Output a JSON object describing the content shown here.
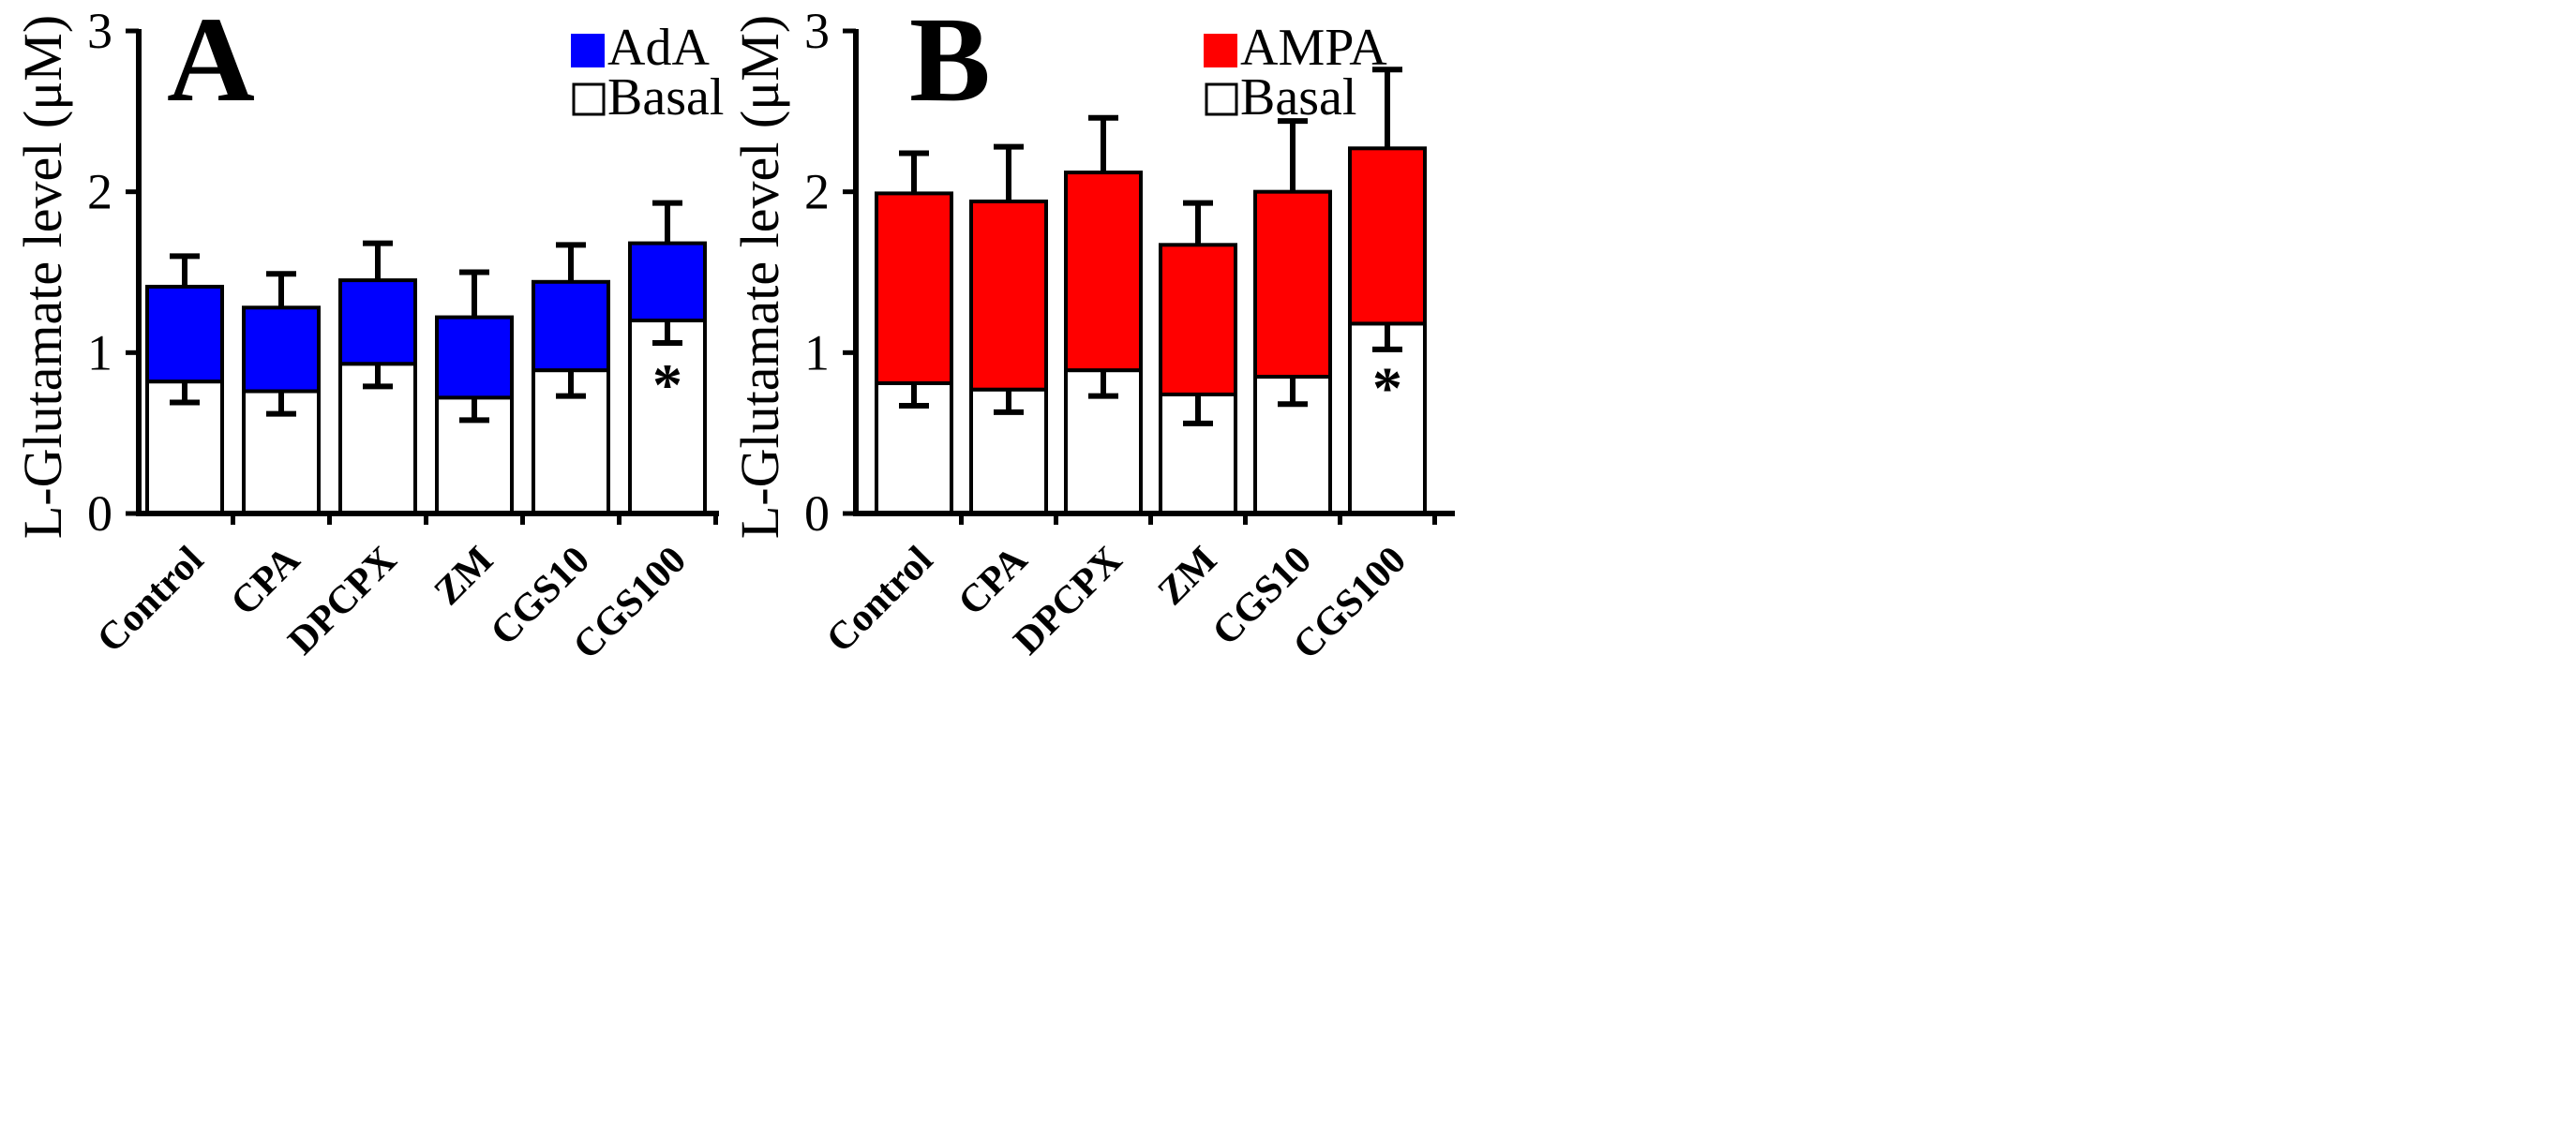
{
  "chart_data": [
    {
      "type": "bar",
      "panel": "A",
      "stacked": true,
      "categories": [
        "Control",
        "CPA",
        "DPCPX",
        "ZM",
        "CGS10",
        "CGS100"
      ],
      "ylabel": "L-Glutamate level (μM)",
      "ylim": [
        0,
        3
      ],
      "yticks": [
        0,
        1,
        2,
        3
      ],
      "legend_position": "top-right",
      "series": [
        {
          "name": "Basal",
          "color": "#ffffff",
          "values": [
            0.82,
            0.76,
            0.93,
            0.72,
            0.89,
            1.2
          ],
          "errors": [
            0.13,
            0.14,
            0.14,
            0.14,
            0.16,
            0.14
          ]
        },
        {
          "name": "AdA",
          "color": "#0000ff",
          "values": [
            1.41,
            1.28,
            1.45,
            1.22,
            1.44,
            1.68
          ],
          "errors": [
            0.19,
            0.21,
            0.23,
            0.28,
            0.23,
            0.25
          ]
        }
      ],
      "annotations": [
        {
          "category": "CGS100",
          "text": "*"
        }
      ]
    },
    {
      "type": "bar",
      "panel": "B",
      "stacked": true,
      "categories": [
        "Control",
        "CPA",
        "DPCPX",
        "ZM",
        "CGS10",
        "CGS100"
      ],
      "ylabel": "L-Glutamate level (μM)",
      "ylim": [
        0,
        3
      ],
      "yticks": [
        0,
        1,
        2,
        3
      ],
      "legend_position": "top-right",
      "series": [
        {
          "name": "Basal",
          "color": "#ffffff",
          "values": [
            0.81,
            0.77,
            0.89,
            0.74,
            0.85,
            1.18
          ],
          "errors": [
            0.14,
            0.14,
            0.16,
            0.18,
            0.17,
            0.16
          ]
        },
        {
          "name": "AMPA",
          "color": "#ff0000",
          "values": [
            1.99,
            1.94,
            2.12,
            1.67,
            2.0,
            2.27
          ],
          "errors": [
            0.25,
            0.34,
            0.34,
            0.26,
            0.44,
            0.49
          ]
        }
      ],
      "annotations": [
        {
          "category": "CGS100",
          "text": "*"
        }
      ]
    }
  ]
}
